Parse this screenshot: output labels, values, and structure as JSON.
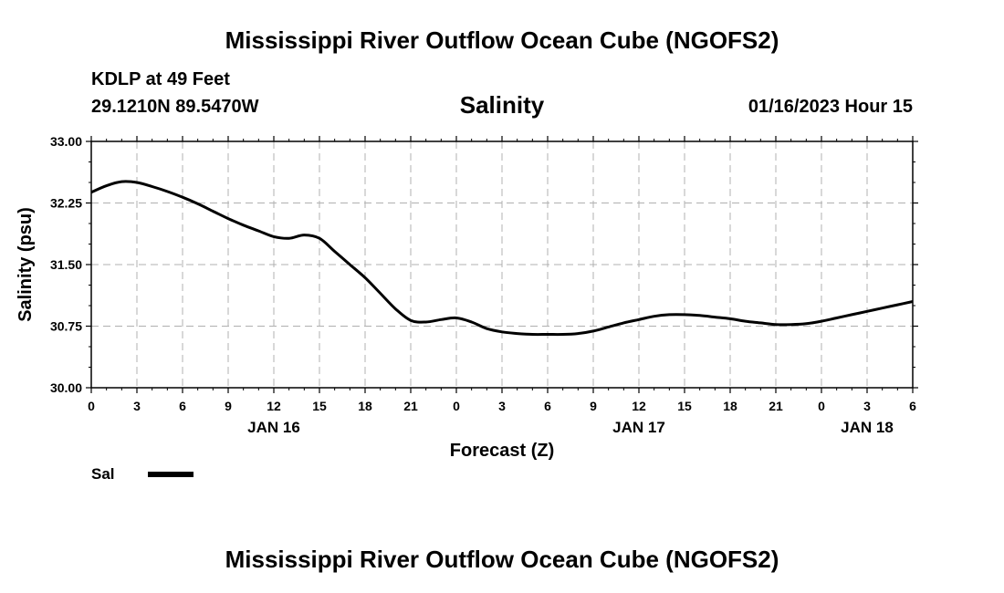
{
  "header": {
    "title": "Mississippi River Outflow Ocean Cube (NGOFS2)",
    "station": "KDLP at 49 Feet",
    "coords": "29.1210N  89.5470W",
    "variable": "Salinity",
    "datetime": "01/16/2023 Hour 15"
  },
  "footer": {
    "title": "Mississippi River Outflow Ocean Cube (NGOFS2)"
  },
  "legend": {
    "label": "Sal"
  },
  "chart_data": {
    "type": "line",
    "title": "Salinity",
    "xlabel": "Forecast (Z)",
    "ylabel": "Salinity (psu)",
    "xlim": [
      0,
      54
    ],
    "ylim": [
      30.0,
      33.0
    ],
    "yticks": [
      "30.00",
      "30.75",
      "31.50",
      "32.25",
      "33.00"
    ],
    "xtick_labels": [
      "0",
      "3",
      "6",
      "9",
      "12",
      "15",
      "18",
      "21",
      "0",
      "3",
      "6",
      "9",
      "12",
      "15",
      "18",
      "21",
      "0",
      "3",
      "6"
    ],
    "day_labels": [
      {
        "x": 12,
        "label": "JAN 16"
      },
      {
        "x": 36,
        "label": "JAN 17"
      },
      {
        "x": 51,
        "label": "JAN 18"
      }
    ],
    "grid": true,
    "series": [
      {
        "name": "Sal",
        "color": "#000000",
        "x": [
          0,
          1,
          2,
          3,
          4,
          5,
          6,
          7,
          8,
          9,
          10,
          11,
          12,
          13,
          14,
          15,
          16,
          17,
          18,
          19,
          20,
          21,
          22,
          23,
          24,
          25,
          26,
          27,
          28,
          29,
          30,
          31,
          32,
          33,
          34,
          35,
          36,
          37,
          38,
          39,
          40,
          41,
          42,
          43,
          44,
          45,
          46,
          47,
          48,
          49,
          50,
          51,
          52,
          53,
          54
        ],
        "y": [
          32.38,
          32.46,
          32.51,
          32.5,
          32.45,
          32.39,
          32.32,
          32.24,
          32.15,
          32.06,
          31.98,
          31.91,
          31.84,
          31.82,
          31.86,
          31.82,
          31.66,
          31.5,
          31.34,
          31.15,
          30.96,
          30.82,
          30.8,
          30.83,
          30.85,
          30.8,
          30.72,
          30.68,
          30.66,
          30.65,
          30.65,
          30.65,
          30.66,
          30.69,
          30.74,
          30.79,
          30.83,
          30.87,
          30.89,
          30.89,
          30.88,
          30.86,
          30.84,
          30.81,
          30.79,
          30.77,
          30.77,
          30.78,
          30.81,
          30.85,
          30.89,
          30.93,
          30.97,
          31.01,
          31.05
        ]
      }
    ]
  }
}
